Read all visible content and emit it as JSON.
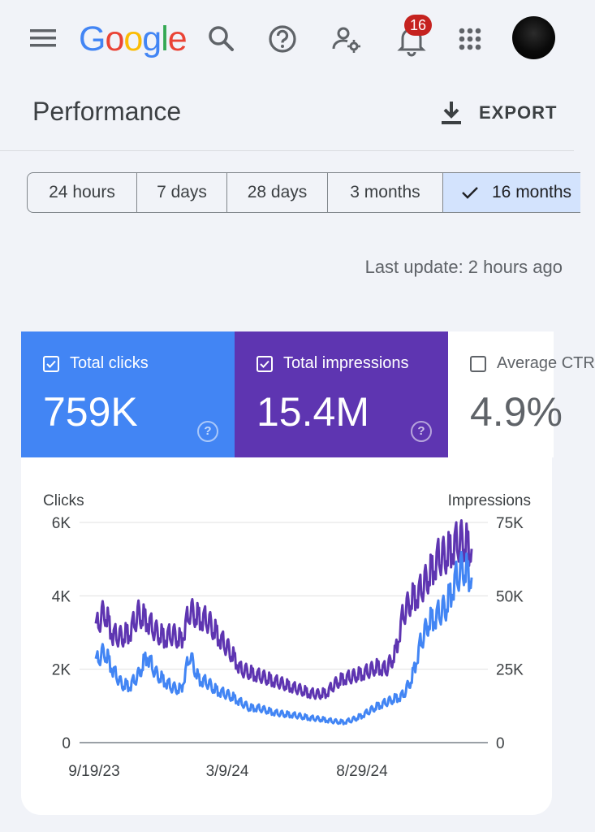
{
  "app": {
    "logo_text": "Google",
    "notification_count": "16"
  },
  "header": {
    "title": "Performance",
    "export_label": "EXPORT"
  },
  "icons": [
    "menu-icon",
    "search-icon",
    "help-icon",
    "manage-account-icon",
    "notifications-icon",
    "apps-grid-icon",
    "download-icon",
    "check-icon",
    "checkbox-icon"
  ],
  "date_ranges": [
    {
      "label": "24 hours",
      "selected": false
    },
    {
      "label": "7 days",
      "selected": false
    },
    {
      "label": "28 days",
      "selected": false
    },
    {
      "label": "3 months",
      "selected": false
    },
    {
      "label": "16 months",
      "selected": true
    }
  ],
  "last_update": "Last update: 2 hours ago",
  "metrics": [
    {
      "label": "Total clicks",
      "value": "759K",
      "checked": true,
      "color": "#4285f4"
    },
    {
      "label": "Total impressions",
      "value": "15.4M",
      "checked": true,
      "color": "#5e35b1"
    },
    {
      "label": "Average CTR",
      "value": "4.9%",
      "checked": false,
      "color": "#ffffff"
    }
  ],
  "chart_data": {
    "type": "line",
    "left_axis_label": "Clicks",
    "right_axis_label": "Impressions",
    "left_ticks": [
      "0",
      "2K",
      "4K",
      "6K"
    ],
    "right_ticks": [
      "0",
      "25K",
      "50K",
      "75K"
    ],
    "x_ticks": [
      "9/19/23",
      "3/9/24",
      "8/29/24"
    ],
    "ylim_left": [
      0,
      6000
    ],
    "ylim_right": [
      0,
      75000
    ],
    "grid": true,
    "series": [
      {
        "name": "Total clicks",
        "axis": "left",
        "color": "#4285f4",
        "values": [
          2200,
          2500,
          2000,
          1600,
          1550,
          1850,
          2400,
          1900,
          1700,
          1500,
          1450,
          2400,
          1750,
          1650,
          1450,
          1350,
          1250,
          1100,
          950,
          950,
          880,
          820,
          780,
          760,
          720,
          680,
          650,
          620,
          580,
          560,
          620,
          720,
          860,
          1000,
          1100,
          1200,
          1300,
          1750,
          2700,
          3300,
          3500,
          3700,
          4400,
          4800,
          4500
        ]
      },
      {
        "name": "Total impressions",
        "axis": "right",
        "color": "#5e35b1",
        "values": [
          39000,
          45000,
          37000,
          36000,
          38000,
          44000,
          42000,
          38000,
          36000,
          37000,
          35000,
          45000,
          43000,
          42000,
          38000,
          34000,
          30000,
          25000,
          24000,
          23000,
          22000,
          21000,
          20000,
          19000,
          18000,
          17000,
          16500,
          17000,
          20000,
          22000,
          22500,
          23500,
          24500,
          26000,
          25000,
          30000,
          44000,
          49000,
          52000,
          57000,
          63000,
          64000,
          68000,
          69000,
          66000
        ]
      }
    ]
  }
}
